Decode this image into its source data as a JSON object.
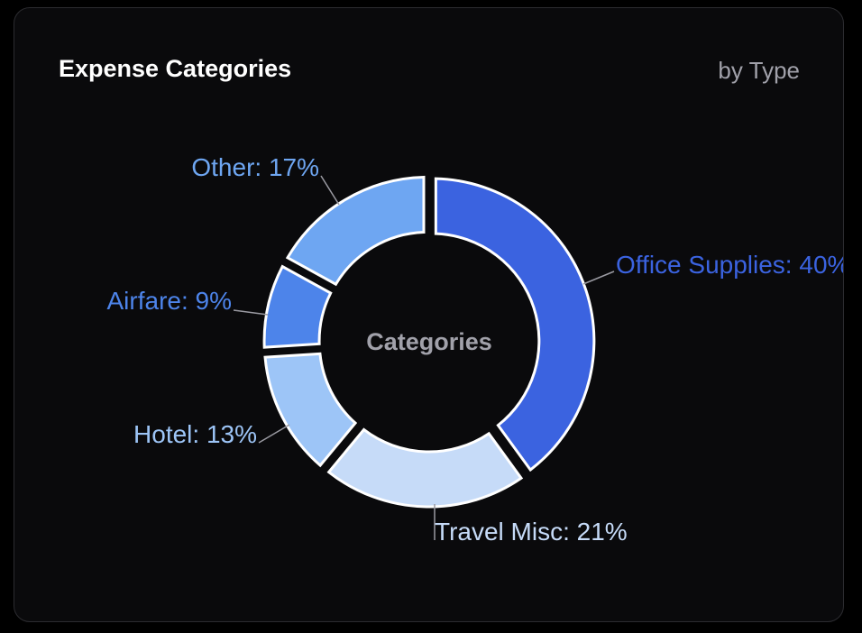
{
  "card": {
    "title": "Expense Categories",
    "subtitle": "by Type"
  },
  "chart_data": {
    "type": "pie",
    "donut": true,
    "center_label": "Categories",
    "categories": [
      "Office Supplies",
      "Travel Misc",
      "Hotel",
      "Airfare",
      "Other"
    ],
    "values": [
      40,
      21,
      13,
      9,
      17
    ],
    "unit": "%",
    "colors": [
      "#3b63e0",
      "#c6dbf8",
      "#9dc5f7",
      "#4d84ea",
      "#6ea6f2"
    ],
    "labels": [
      "Office Supplies: 40%",
      "Travel Misc: 21%",
      "Hotel: 13%",
      "Airfare: 9%",
      "Other: 17%"
    ]
  }
}
